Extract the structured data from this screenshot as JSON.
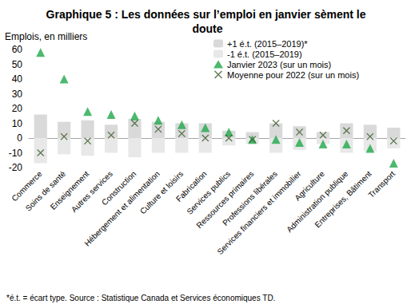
{
  "chart_data": {
    "type": "bar",
    "title": "Graphique 5 : Les données sur l’emploi en janvier sèment le doute",
    "y_label": "Emplois, en milliers",
    "footnote": "*é.t. = écart type. Source : Statistique Canada et Services économiques TD.",
    "categories": [
      "Commerce",
      "Soins de santé",
      "Enseignement",
      "Autres services",
      "Construction",
      "Hébergement et alimentation",
      "Culture et loisirs",
      "Fabrication",
      "Services publics",
      "Ressources primaires",
      "Professions libérales",
      "Services financiers et immobilier",
      "Agriculture",
      "Administration publique",
      "Entreprises, Bâtiment",
      "Transport"
    ],
    "series": [
      {
        "name": "+1 é.t. (2015–2019)*",
        "type": "bar",
        "color": "#d9d9d9",
        "values": [
          16,
          11,
          12,
          9,
          13,
          11,
          10,
          10,
          5,
          4,
          10,
          8,
          4,
          10,
          9,
          7
        ]
      },
      {
        "name": "-1 é.t. (2015–2019)",
        "type": "bar",
        "color": "#e8e8e8",
        "values": [
          -17,
          -11,
          -12,
          -10,
          -13,
          -10,
          -10,
          -10,
          -5,
          -4,
          -10,
          -8,
          -4,
          -10,
          -9,
          -7
        ]
      },
      {
        "name": "Janvier 2023 (sur un mois)",
        "type": "scatter",
        "marker": "triangle",
        "color": "#1fa84a",
        "values": [
          58,
          40,
          18,
          16,
          15,
          12,
          9,
          7,
          4,
          -1,
          -1,
          -3,
          -4,
          -4,
          -7,
          -17
        ]
      },
      {
        "name": "Moyenne pour 2022 (sur un mois)",
        "type": "scatter",
        "marker": "x",
        "color": "#3a5a2a",
        "values": [
          -10,
          1,
          -2,
          2,
          10,
          6,
          3,
          0,
          0,
          -1,
          10,
          4,
          2,
          5,
          1,
          -2
        ]
      }
    ],
    "ylim": [
      -20,
      60
    ],
    "yticks": [
      -20,
      -10,
      0,
      10,
      20,
      30,
      40,
      50,
      60
    ],
    "grid": false,
    "legend": "top-right"
  }
}
